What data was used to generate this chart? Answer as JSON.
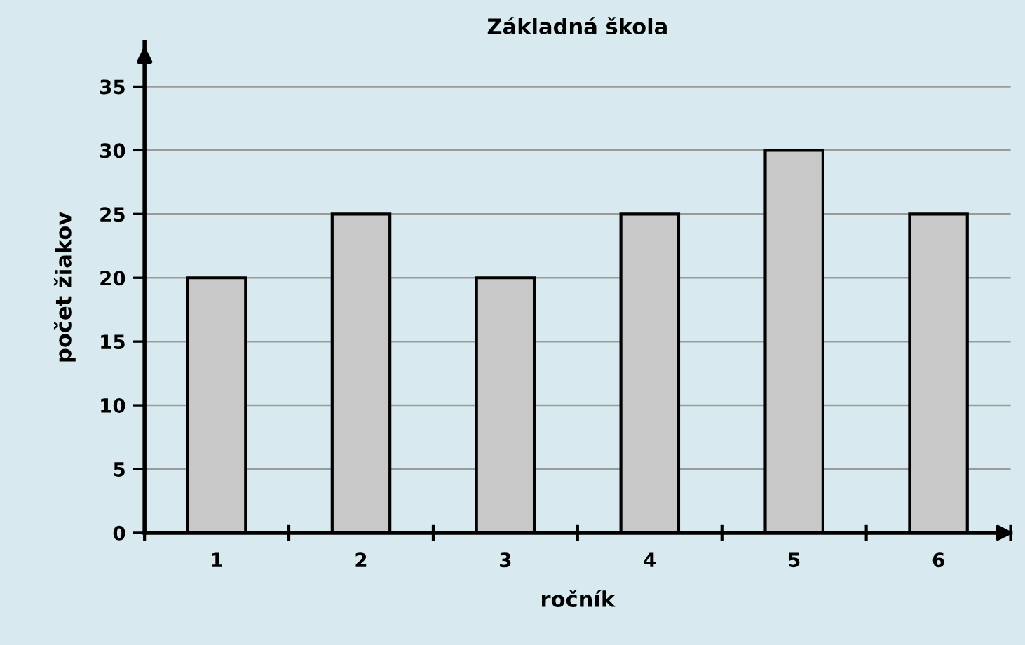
{
  "chart_data": {
    "type": "bar",
    "title": "Základná škola",
    "xlabel": "ročník",
    "ylabel": "počet žiakov",
    "categories": [
      "1",
      "2",
      "3",
      "4",
      "5",
      "6"
    ],
    "series": [
      {
        "color": "#c8c8c8",
        "values": [
          20,
          25,
          20,
          25,
          30,
          25
        ]
      }
    ],
    "ylim": [
      0,
      38.5
    ],
    "yticks": [
      0,
      5,
      10,
      15,
      20,
      25,
      30,
      35
    ],
    "grid": "y"
  }
}
